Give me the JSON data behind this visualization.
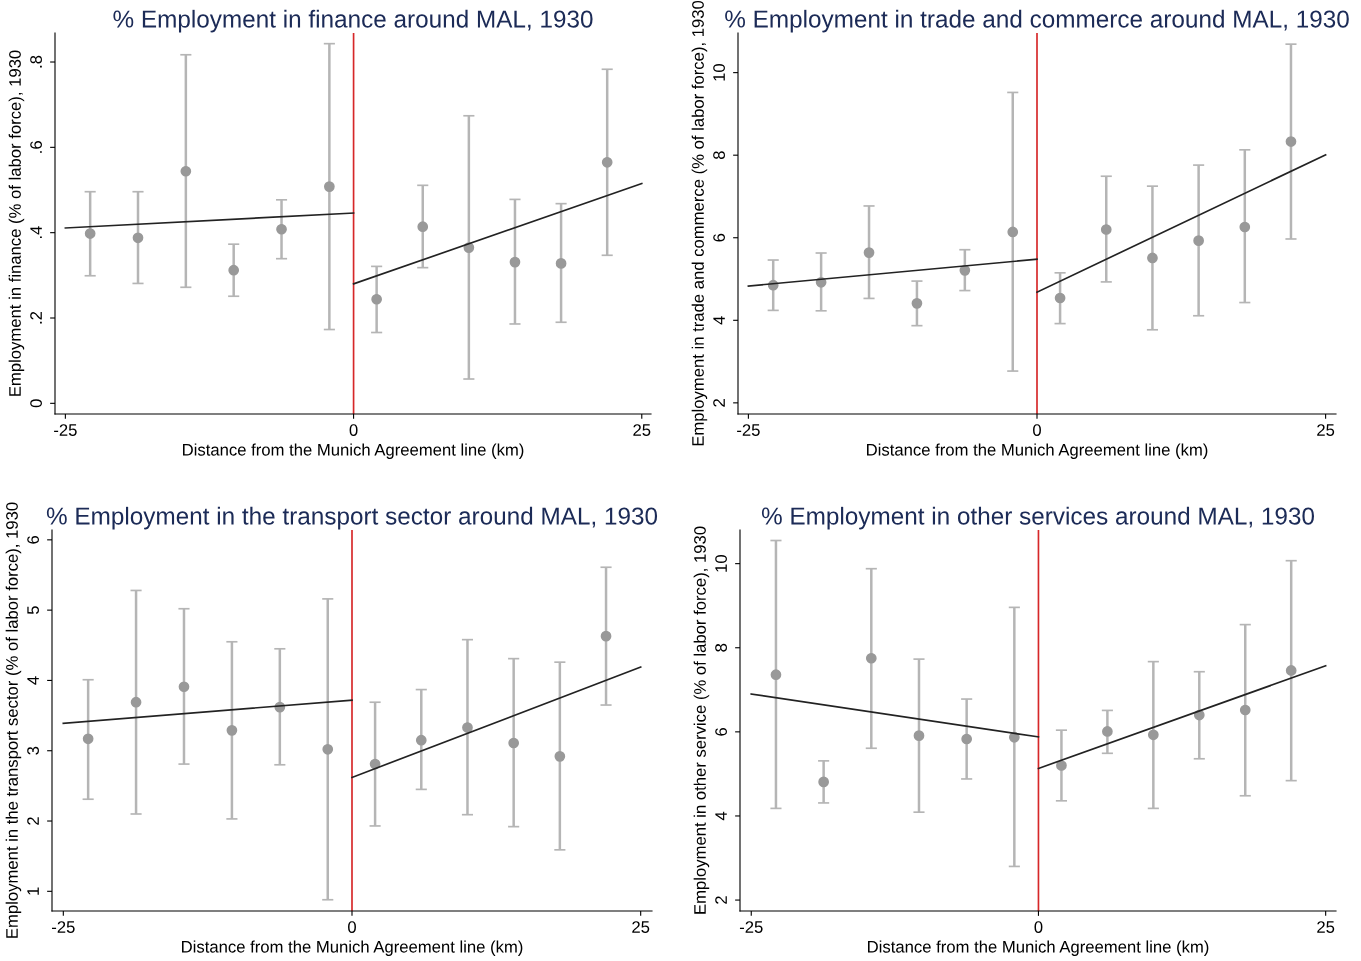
{
  "chart_data": [
    {
      "type": "scatter",
      "title": "% Employment in finance around MAL, 1930",
      "xlabel": "Distance from the Munich Agreement line (km)",
      "ylabel": "Employment in finance (% of labor force), 1930",
      "x": [
        -22.85,
        -18.7,
        -14.55,
        -10.4,
        -6.25,
        -2.1,
        2,
        6,
        10,
        14,
        18,
        22
      ],
      "xlim": [
        -25.9,
        25.8
      ],
      "xticks": [
        -25,
        0,
        25
      ],
      "ylim": [
        -0.025,
        0.868
      ],
      "yticks": [
        0,
        {
          "value": 0.2,
          "label": ".2"
        },
        {
          "value": 0.4,
          "label": ".4"
        },
        {
          "value": 0.6,
          "label": ".6"
        },
        {
          "value": 0.8,
          "label": ".8"
        }
      ],
      "grid": false,
      "series": [
        {
          "marker": "circle",
          "color": "#999999",
          "values": [
            0.398,
            0.388,
            0.544,
            0.312,
            0.408,
            0.508,
            0.244,
            0.414,
            0.365,
            0.331,
            0.328,
            0.565
          ],
          "errors": [
            [
              0.299,
              0.496
            ],
            [
              0.281,
              0.496
            ],
            [
              0.272,
              0.817
            ],
            [
              0.251,
              0.373
            ],
            [
              0.339,
              0.477
            ],
            [
              0.173,
              0.843
            ],
            [
              0.166,
              0.321
            ],
            [
              0.318,
              0.511
            ],
            [
              0.057,
              0.674
            ],
            [
              0.186,
              0.478
            ],
            [
              0.19,
              0.468
            ],
            [
              0.347,
              0.783
            ]
          ]
        },
        {
          "type": "line",
          "color": "#222222",
          "x": [
            -25,
            0
          ],
          "values": [
            0.411,
            0.446
          ]
        },
        {
          "type": "line",
          "color": "#222222",
          "x": [
            0,
            25
          ],
          "values": [
            0.28,
            0.515
          ]
        }
      ],
      "ref_lines": [
        {
          "axis": "x",
          "value": 0,
          "color": "#d62728"
        }
      ]
    },
    {
      "type": "scatter",
      "title": "% Employment in trade and commerce around MAL, 1930",
      "xlabel": "Distance from the Munich Agreement line (km)",
      "ylabel": "Employment in trade and commerce (% of labor force), 1930",
      "x": [
        -22.85,
        -18.7,
        -14.55,
        -10.4,
        -6.25,
        -2.1,
        2,
        6,
        10,
        14,
        18,
        22
      ],
      "xlim": [
        -25.9,
        25.9
      ],
      "xticks": [
        -25,
        0,
        25
      ],
      "ylim": [
        1.73,
        10.96
      ],
      "yticks": [
        2,
        4,
        6,
        8,
        10
      ],
      "grid": false,
      "series": [
        {
          "marker": "circle",
          "color": "#999999",
          "values": [
            4.85,
            4.92,
            5.64,
            4.41,
            5.21,
            6.14,
            4.54,
            6.2,
            5.51,
            5.93,
            6.26,
            8.33
          ],
          "errors": [
            [
              4.24,
              5.46
            ],
            [
              4.23,
              5.63
            ],
            [
              4.53,
              6.77
            ],
            [
              3.87,
              4.95
            ],
            [
              4.72,
              5.71
            ],
            [
              2.77,
              9.52
            ],
            [
              3.92,
              5.15
            ],
            [
              4.93,
              7.49
            ],
            [
              3.77,
              7.25
            ],
            [
              4.11,
              7.76
            ],
            [
              4.43,
              8.13
            ],
            [
              5.97,
              10.69
            ]
          ]
        },
        {
          "type": "line",
          "color": "#222222",
          "x": [
            -25,
            0
          ],
          "values": [
            4.83,
            5.48
          ]
        },
        {
          "type": "line",
          "color": "#222222",
          "x": [
            0,
            25
          ],
          "values": [
            4.68,
            8.01
          ]
        }
      ],
      "ref_lines": [
        {
          "axis": "x",
          "value": 0,
          "color": "#d62728"
        }
      ]
    },
    {
      "type": "scatter",
      "title": "% Employment in the transport sector around MAL, 1930",
      "xlabel": "Distance from the Munich Agreement line (km)",
      "ylabel": "Employment in the transport sector (% of labor force), 1930",
      "x": [
        -22.85,
        -18.7,
        -14.55,
        -10.4,
        -6.25,
        -2.1,
        2,
        6,
        10,
        14,
        18,
        22
      ],
      "xlim": [
        -25.98,
        25.98
      ],
      "xticks": [
        -25,
        0,
        25
      ],
      "ylim": [
        0.72,
        6.14
      ],
      "yticks": [
        1,
        2,
        3,
        4,
        5,
        6
      ],
      "grid": false,
      "series": [
        {
          "marker": "circle",
          "color": "#999999",
          "values": [
            3.17,
            3.69,
            3.91,
            3.29,
            3.62,
            3.02,
            2.81,
            3.15,
            3.33,
            3.11,
            2.92,
            4.63
          ],
          "errors": [
            [
              2.31,
              4.01
            ],
            [
              2.1,
              5.28
            ],
            [
              2.81,
              5.02
            ],
            [
              2.03,
              4.55
            ],
            [
              2.8,
              4.45
            ],
            [
              0.88,
              5.16
            ],
            [
              1.93,
              3.69
            ],
            [
              2.45,
              3.87
            ],
            [
              2.09,
              4.58
            ],
            [
              1.92,
              4.31
            ],
            [
              1.59,
              4.26
            ],
            [
              3.65,
              5.61
            ]
          ]
        },
        {
          "type": "line",
          "color": "#222222",
          "x": [
            -25,
            0
          ],
          "values": [
            3.39,
            3.72
          ]
        },
        {
          "type": "line",
          "color": "#222222",
          "x": [
            0,
            25
          ],
          "values": [
            2.62,
            4.19
          ]
        }
      ],
      "ref_lines": [
        {
          "axis": "x",
          "value": 0,
          "color": "#d62728"
        }
      ]
    },
    {
      "type": "scatter",
      "title": "% Employment in other services around MAL, 1930",
      "xlabel": "Distance from the Munich Agreement line (km)",
      "ylabel": "Employment in other service (% of labor force), 1930",
      "x": [
        -22.85,
        -18.7,
        -14.55,
        -10.4,
        -6.25,
        -2.1,
        2,
        6,
        10,
        14,
        18,
        22
      ],
      "xlim": [
        -25.98,
        25.9
      ],
      "xticks": [
        -25,
        0,
        25
      ],
      "ylim": [
        1.74,
        10.8
      ],
      "yticks": [
        2,
        4,
        6,
        8,
        10
      ],
      "grid": false,
      "series": [
        {
          "marker": "circle",
          "color": "#999999",
          "values": [
            7.36,
            4.81,
            7.75,
            5.91,
            5.83,
            5.87,
            5.2,
            6.01,
            5.93,
            6.4,
            6.52,
            7.46
          ],
          "errors": [
            [
              4.18,
              10.55
            ],
            [
              4.31,
              5.31
            ],
            [
              5.61,
              9.88
            ],
            [
              4.09,
              7.73
            ],
            [
              4.88,
              6.78
            ],
            [
              2.8,
              8.96
            ],
            [
              4.36,
              6.04
            ],
            [
              5.49,
              6.51
            ],
            [
              4.18,
              7.67
            ],
            [
              5.36,
              7.43
            ],
            [
              4.48,
              8.55
            ],
            [
              4.84,
              10.07
            ]
          ]
        },
        {
          "type": "line",
          "color": "#222222",
          "x": [
            -25,
            0
          ],
          "values": [
            6.9,
            5.88
          ]
        },
        {
          "type": "line",
          "color": "#222222",
          "x": [
            0,
            25
          ],
          "values": [
            5.13,
            7.57
          ]
        }
      ],
      "ref_lines": [
        {
          "axis": "x",
          "value": 0,
          "color": "#d62728"
        }
      ]
    }
  ]
}
